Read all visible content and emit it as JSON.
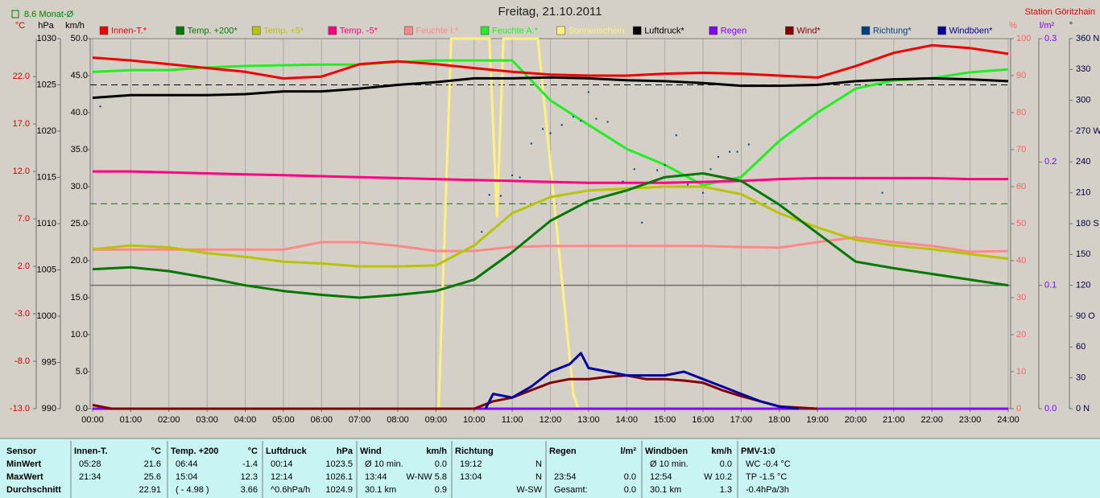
{
  "chart_data": {
    "type": "line",
    "title": "Freitag, 21.10.2011",
    "station": "Station Göritzhain",
    "monthly_average": {
      "value": 8.6,
      "label": "8.6 Monat-Ø",
      "axis": 0,
      "color": "#008000"
    },
    "reference_lines": [
      {
        "axis": 1,
        "value": 1025,
        "color": "#000000",
        "dash": true
      },
      {
        "axis": 0,
        "value": 0,
        "color": "#707070",
        "dash": false
      }
    ],
    "grid": true,
    "axes": [
      {
        "name": "°C",
        "color": "#cc0000",
        "lim": [
          -13,
          26
        ],
        "ticks": [
          {
            "value": -13,
            "label": "-13.0"
          },
          {
            "value": -8,
            "label": "-8.0"
          },
          {
            "value": -3,
            "label": "-3.0"
          },
          {
            "value": 2,
            "label": "2.0"
          },
          {
            "value": 7,
            "label": "7.0"
          },
          {
            "value": 12,
            "label": "12.0"
          },
          {
            "value": 17,
            "label": "17.0"
          },
          {
            "value": 22,
            "label": "22.0"
          }
        ]
      },
      {
        "name": "hPa",
        "color": "#000000",
        "lim": [
          990,
          1030
        ],
        "ticks": [
          990,
          995,
          1000,
          1005,
          1010,
          1015,
          1020,
          1025,
          1030
        ]
      },
      {
        "name": "km/h",
        "color": "#000000",
        "lim": [
          0,
          50
        ],
        "ticks": [
          {
            "value": 0,
            "label": "0.0"
          },
          {
            "value": 5,
            "label": "5.0"
          },
          {
            "value": 10,
            "label": "10.0"
          },
          {
            "value": 15,
            "label": "15.0"
          },
          {
            "value": 20,
            "label": "20.0"
          },
          {
            "value": 25,
            "label": "25.0"
          },
          {
            "value": 30,
            "label": "30.0"
          },
          {
            "value": 35,
            "label": "35.0"
          },
          {
            "value": 40,
            "label": "40.0"
          },
          {
            "value": 45,
            "label": "45.0"
          },
          {
            "value": 50,
            "label": "50.0"
          }
        ]
      },
      {
        "name": "%",
        "color": "#ff6060",
        "lim": [
          0,
          100
        ],
        "ticks": [
          0,
          10,
          20,
          30,
          40,
          50,
          60,
          70,
          80,
          90,
          100
        ]
      },
      {
        "name": "l/m²",
        "color": "#8000ff",
        "lim": [
          0,
          0.3
        ],
        "ticks": [
          {
            "value": 0,
            "label": "0.0"
          },
          0.1,
          0.2,
          0.3
        ]
      },
      {
        "name": "°",
        "color": "#000040",
        "lim": [
          0,
          360
        ],
        "ticks": [
          {
            "value": 0,
            "label": "0 N"
          },
          30,
          60,
          {
            "value": 90,
            "label": "90 O"
          },
          120,
          150,
          {
            "value": 180,
            "label": "180 S"
          },
          210,
          240,
          {
            "value": 270,
            "label": "270 W"
          },
          300,
          330,
          {
            "value": 360,
            "label": "360 N"
          }
        ]
      }
    ],
    "xlim": [
      0,
      24
    ],
    "xticks": [
      {
        "value": 0,
        "label": "00:00"
      },
      {
        "value": 1,
        "label": "01:00"
      },
      {
        "value": 2,
        "label": "02:00"
      },
      {
        "value": 3,
        "label": "03:00"
      },
      {
        "value": 4,
        "label": "04:00"
      },
      {
        "value": 5,
        "label": "05:00"
      },
      {
        "value": 6,
        "label": "06:00"
      },
      {
        "value": 7,
        "label": "07:00"
      },
      {
        "value": 8,
        "label": "08:00"
      },
      {
        "value": 9,
        "label": "09:00"
      },
      {
        "value": 10,
        "label": "10:00"
      },
      {
        "value": 11,
        "label": "11:00"
      },
      {
        "value": 12,
        "label": "12:00"
      },
      {
        "value": 13,
        "label": "13:00"
      },
      {
        "value": 14,
        "label": "14:00"
      },
      {
        "value": 15,
        "label": "15:00"
      },
      {
        "value": 16,
        "label": "16:00"
      },
      {
        "value": 17,
        "label": "17:00"
      },
      {
        "value": 18,
        "label": "18:00"
      },
      {
        "value": 19,
        "label": "19:00"
      },
      {
        "value": 20,
        "label": "20:00"
      },
      {
        "value": 21,
        "label": "21:00"
      },
      {
        "value": 22,
        "label": "22:00"
      },
      {
        "value": 23,
        "label": "23:00"
      },
      {
        "value": 24,
        "label": "24:00"
      }
    ],
    "x": [
      0,
      1,
      2,
      3,
      4,
      5,
      6,
      7,
      8,
      9,
      10,
      11,
      12,
      13,
      14,
      15,
      16,
      17,
      18,
      19,
      20,
      21,
      22,
      23,
      24
    ],
    "series": [
      {
        "name": "Innen-T.*",
        "color": "#ee0000",
        "axis": 0,
        "values": [
          24.0,
          23.7,
          23.3,
          22.9,
          22.5,
          21.8,
          22.0,
          23.3,
          23.6,
          23.3,
          22.9,
          22.5,
          22.2,
          22.1,
          22.1,
          22.3,
          22.4,
          22.3,
          22.1,
          21.9,
          23.1,
          24.5,
          25.3,
          25.0,
          24.4
        ]
      },
      {
        "name": "Temp. +200*",
        "color": "#007800",
        "axis": 0,
        "values": [
          1.7,
          1.9,
          1.5,
          0.8,
          0.0,
          -0.6,
          -1.0,
          -1.3,
          -1.0,
          -0.6,
          0.6,
          3.5,
          6.8,
          8.9,
          10.0,
          11.4,
          11.8,
          11.0,
          8.5,
          5.5,
          2.5,
          1.8,
          1.2,
          0.6,
          0.0
        ]
      },
      {
        "name": "Temp. +5*",
        "color": "#b8c400",
        "axis": 0,
        "values": [
          3.8,
          4.2,
          4.0,
          3.4,
          3.0,
          2.5,
          2.3,
          2.0,
          2.0,
          2.1,
          4.2,
          7.6,
          9.3,
          10.0,
          10.2,
          10.4,
          10.4,
          9.6,
          7.6,
          6.1,
          4.8,
          4.2,
          3.8,
          3.3,
          2.8
        ]
      },
      {
        "name": "Temp. -5*",
        "color": "#ff0080",
        "axis": 0,
        "values": [
          12.0,
          12.0,
          11.9,
          11.8,
          11.7,
          11.6,
          11.5,
          11.4,
          11.3,
          11.2,
          11.1,
          11.0,
          10.9,
          10.8,
          10.8,
          10.8,
          10.9,
          11.0,
          11.2,
          11.3,
          11.3,
          11.3,
          11.3,
          11.2,
          11.2
        ]
      },
      {
        "name": "Feuchte I.*",
        "color": "#ff8888",
        "axis": 3,
        "values": [
          43,
          43,
          43,
          43,
          43,
          43,
          45,
          45,
          44,
          42.6,
          42.6,
          43.7,
          44,
          44,
          44,
          44,
          44,
          43.7,
          43.5,
          45,
          46.3,
          45,
          44,
          42.4,
          42.6
        ]
      },
      {
        "name": "Feuchte A.*",
        "color": "#22ee22",
        "axis": 3,
        "values": [
          91,
          91.5,
          91.5,
          92.2,
          92.6,
          92.8,
          93,
          93,
          93.7,
          94.1,
          94.1,
          94.1,
          83.3,
          76.7,
          70.2,
          65.9,
          60.4,
          62.6,
          72.4,
          80,
          86.5,
          88.7,
          89.3,
          90.9,
          91.7
        ]
      },
      {
        "name": "Sonnenschein",
        "color": "#fff080",
        "axis": 3,
        "x": [
          0,
          9.07,
          9.4,
          10.4,
          10.6,
          10.77,
          11.67,
          12.6,
          12.73,
          24
        ],
        "values": [
          0,
          0,
          100,
          100,
          52,
          100,
          100,
          4,
          0,
          0
        ]
      },
      {
        "name": "Luftdruck*",
        "color": "#000000",
        "axis": 1,
        "values": [
          1023.6,
          1023.9,
          1023.9,
          1023.9,
          1024.0,
          1024.3,
          1024.3,
          1024.6,
          1025.0,
          1025.3,
          1025.7,
          1025.7,
          1025.8,
          1025.7,
          1025.5,
          1025.4,
          1025.2,
          1024.9,
          1024.9,
          1025.0,
          1025.4,
          1025.6,
          1025.7,
          1025.6,
          1025.4
        ]
      },
      {
        "name": "Regen",
        "color": "#8000ff",
        "axis": 4,
        "x": [
          0,
          24
        ],
        "values": [
          0,
          0
        ]
      },
      {
        "name": "Wind*",
        "color": "#800000",
        "axis": 2,
        "x": [
          0,
          0.5,
          1,
          10,
          10.5,
          11,
          11.5,
          12,
          12.5,
          13,
          13.5,
          14,
          14.5,
          15,
          15.5,
          16,
          16.5,
          17,
          17.5,
          18,
          19
        ],
        "values": [
          0.5,
          0,
          0,
          0,
          1.0,
          1.5,
          2.5,
          3.5,
          4.0,
          4.0,
          4.3,
          4.5,
          4.0,
          4.0,
          3.8,
          3.5,
          2.5,
          1.7,
          1.0,
          0.3,
          0
        ]
      },
      {
        "name": "Richtung*",
        "color": "#004080",
        "axis": 5,
        "mark": "dots",
        "x": [
          0.2,
          10.2,
          10.4,
          10.7,
          11.0,
          11.2,
          11.5,
          11.8,
          12.0,
          12.3,
          12.6,
          12.8,
          13.0,
          13.2,
          13.5,
          13.9,
          14.2,
          14.4,
          14.8,
          15.0,
          15.3,
          15.6,
          16.0,
          16.2,
          16.4,
          16.7,
          16.9,
          17.2,
          20.7
        ],
        "values": [
          294,
          172,
          208,
          207,
          227,
          225,
          258,
          272,
          268,
          276,
          284,
          280,
          308,
          282,
          279,
          221,
          233,
          181,
          232,
          237,
          266,
          218,
          210,
          233,
          245,
          250,
          250,
          257,
          210
        ]
      },
      {
        "name": "Windböen*",
        "color": "#0000a0",
        "axis": 2,
        "x": [
          10.3,
          10.5,
          11,
          11.5,
          12,
          12.5,
          12.8,
          13,
          13.5,
          14,
          14.5,
          15,
          15.5,
          16,
          16.5,
          17,
          17.5,
          18,
          18.5
        ],
        "values": [
          0,
          2.0,
          1.5,
          3.0,
          5.0,
          6.0,
          7.5,
          5.5,
          5.0,
          4.5,
          4.5,
          4.5,
          5.0,
          4.0,
          3.0,
          2.0,
          1.0,
          0.3,
          0
        ]
      }
    ]
  },
  "table": {
    "row_labels": [
      "Sensor",
      "MinWert",
      "MaxWert",
      "Durchschnitt"
    ],
    "groups": [
      {
        "header": [
          "Innen-T.",
          "°C"
        ],
        "rows": [
          [
            "05:28",
            "21.6"
          ],
          [
            "21:34",
            "25.6"
          ],
          [
            null,
            "22.91"
          ]
        ]
      },
      {
        "header": [
          "Temp. +200",
          "°C"
        ],
        "rows": [
          [
            "06:44",
            "-1.4"
          ],
          [
            "15:04",
            "12.3"
          ],
          [
            "( - 4.98 )",
            "3.66"
          ]
        ]
      },
      {
        "header": [
          "Luftdruck",
          "hPa"
        ],
        "rows": [
          [
            "00:14",
            "1023.5"
          ],
          [
            "12:14",
            "1026.1"
          ],
          [
            "^0.6hPa/h",
            "1024.9"
          ]
        ]
      },
      {
        "header": [
          "Wind",
          "km/h"
        ],
        "rows": [
          [
            "Ø 10 min.",
            "0.0"
          ],
          [
            "13:44",
            "W-NW 5.8"
          ],
          [
            "30.1 km",
            "0.9"
          ]
        ]
      },
      {
        "header": [
          "Richtung",
          null
        ],
        "rows": [
          [
            "19:12",
            "N"
          ],
          [
            "13:04",
            "N"
          ],
          [
            null,
            "W-SW"
          ]
        ]
      },
      {
        "header": [
          "Regen",
          "l/m²"
        ],
        "rows": [
          [
            null,
            null
          ],
          [
            "23:54",
            "0.0"
          ],
          [
            "Gesamt:",
            "0.0"
          ]
        ]
      },
      {
        "header": [
          "Windböen",
          "km/h"
        ],
        "rows": [
          [
            "Ø 10 min.",
            "0.0"
          ],
          [
            "12:54",
            "W 10.2"
          ],
          [
            "30.1 km",
            "1.3"
          ]
        ]
      },
      {
        "header": [
          "PMV-1:0",
          null
        ],
        "rows": [
          [
            "WC -0.4 °C",
            null
          ],
          [
            "TP -1.5 °C",
            null
          ],
          [
            "-0.4hPa/3h",
            null
          ]
        ]
      }
    ]
  }
}
